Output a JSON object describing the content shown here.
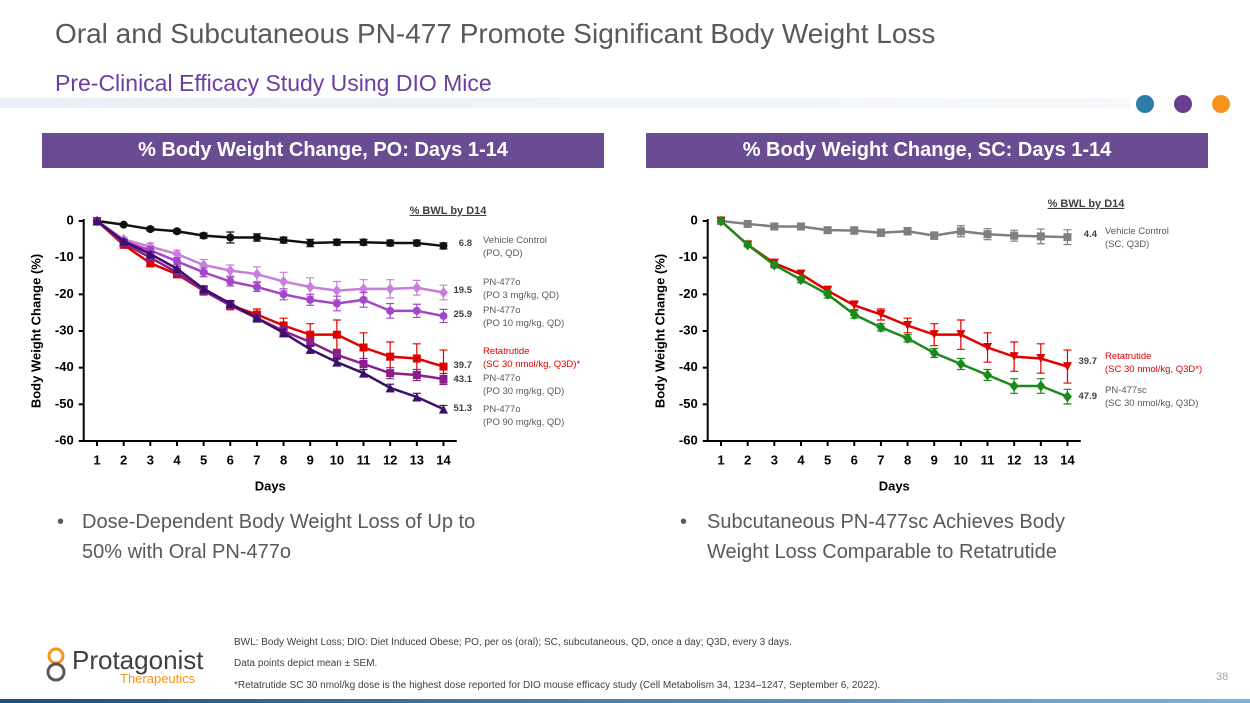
{
  "header": {
    "title": "Oral and Subcutaneous PN-477 Promote Significant Body Weight Loss",
    "subtitle": "Pre-Clinical Efficacy Study Using DIO Mice"
  },
  "chart_data": [
    {
      "type": "line",
      "title": "% Body Weight Change, PO: Days 1-14",
      "x_label": "Days",
      "y_label": "Body Weight Change (%)",
      "legend_title": "% BWL by D14",
      "x": [
        1,
        2,
        3,
        4,
        5,
        6,
        7,
        8,
        9,
        10,
        11,
        12,
        13,
        14
      ],
      "xlim": [
        0.5,
        14.5
      ],
      "xticks": [
        1,
        2,
        3,
        4,
        5,
        6,
        7,
        8,
        9,
        10,
        11,
        12,
        13,
        14
      ],
      "ylim": [
        -60,
        0
      ],
      "yticks": [
        0,
        -10,
        -20,
        -30,
        -40,
        -50,
        -60
      ],
      "series": [
        {
          "name": "Vehicle Control\n(PO, QD)",
          "bwl": "6.8",
          "color": "#111111",
          "marker": "circle",
          "values": [
            0,
            -1,
            -2.2,
            -2.8,
            -4,
            -4.5,
            -4.5,
            -5.2,
            -6,
            -5.8,
            -5.8,
            -6,
            -6,
            -6.8
          ],
          "errors": [
            0,
            0.3,
            0.5,
            0.5,
            0.7,
            1.5,
            1,
            0.8,
            1,
            0.8,
            0.8,
            0.8,
            0.8,
            0.8
          ]
        },
        {
          "name": "PN-477o\n(PO 3 mg/kg, QD)",
          "bwl": "19.5",
          "color": "#c77fdc",
          "marker": "diamond",
          "values": [
            0,
            -5,
            -7,
            -9,
            -12,
            -13.5,
            -14.5,
            -16.5,
            -18,
            -19,
            -18.5,
            -18.5,
            -18.2,
            -19.5
          ],
          "errors": [
            0,
            0.5,
            1,
            1,
            1.5,
            1.5,
            2,
            2.5,
            2.5,
            2.5,
            2.5,
            2.5,
            2,
            2
          ]
        },
        {
          "name": "PN-477o\n(PO 10 mg/kg, QD)",
          "bwl": "25.9",
          "color": "#a346c8",
          "marker": "circle",
          "values": [
            0,
            -5.5,
            -8,
            -11,
            -14,
            -16.5,
            -18,
            -20,
            -21.5,
            -22.5,
            -21.5,
            -24.5,
            -24.5,
            -25.9
          ],
          "errors": [
            0,
            0.5,
            1,
            1,
            1.2,
            1.2,
            1.2,
            1.5,
            1.5,
            2,
            2,
            2,
            1.8,
            1.8
          ]
        },
        {
          "name": "Retatrutide\n(SC 30 nmol/kg, Q3D)*",
          "bwl": "39.7",
          "color": "#e00000",
          "label_color": "#e00000",
          "marker": "square",
          "values": [
            0,
            -6.5,
            -11.5,
            -14.5,
            -19,
            -23,
            -25.5,
            -28.5,
            -31,
            -31,
            -34.5,
            -37,
            -37.5,
            -39.7
          ],
          "errors": [
            0,
            0.5,
            1,
            1,
            1.2,
            1.2,
            1.5,
            2,
            3,
            4,
            4,
            4,
            4,
            4.5
          ]
        },
        {
          "name": "PN-477o\n(PO 30 mg/kg, QD)",
          "bwl": "43.1",
          "color": "#8a1f8c",
          "marker": "square",
          "values": [
            0,
            -6,
            -10,
            -14,
            -19,
            -23,
            -26.5,
            -30,
            -33,
            -36.5,
            -39,
            -41.5,
            -42,
            -43.1
          ],
          "errors": [
            0,
            0.5,
            0.8,
            1,
            1,
            1,
            1,
            1.2,
            1.2,
            1.2,
            1.5,
            1.5,
            1.5,
            1.5
          ]
        },
        {
          "name": "PN-477o\n(PO 90 mg/kg, QD)",
          "bwl": "51.3",
          "color": "#3b0f6a",
          "marker": "triangle-up",
          "values": [
            0,
            -5.5,
            -9,
            -13,
            -18.5,
            -22.5,
            -26.5,
            -30.5,
            -35,
            -38.5,
            -41.5,
            -45.5,
            -48,
            -51.3
          ],
          "errors": [
            0,
            0.3,
            0.5,
            0.5,
            0.8,
            0.8,
            0.8,
            1,
            1,
            1,
            1,
            1,
            1,
            1
          ]
        }
      ]
    },
    {
      "type": "line",
      "title": "% Body Weight Change, SC: Days 1-14",
      "x_label": "Days",
      "y_label": "Body Weight Change (%)",
      "legend_title": "% BWL by D14",
      "x": [
        1,
        2,
        3,
        4,
        5,
        6,
        7,
        8,
        9,
        10,
        11,
        12,
        13,
        14
      ],
      "xlim": [
        0.5,
        14.5
      ],
      "xticks": [
        1,
        2,
        3,
        4,
        5,
        6,
        7,
        8,
        9,
        10,
        11,
        12,
        13,
        14
      ],
      "ylim": [
        -60,
        0
      ],
      "yticks": [
        0,
        -10,
        -20,
        -30,
        -40,
        -50,
        -60
      ],
      "series": [
        {
          "name": "Vehicle Control\n(SC, Q3D)",
          "bwl": "4.4",
          "color": "#7f7f7f",
          "marker": "square",
          "values": [
            0,
            -0.8,
            -1.5,
            -1.5,
            -2.5,
            -2.6,
            -3.2,
            -2.8,
            -4,
            -2.8,
            -3.6,
            -4,
            -4.2,
            -4.4
          ],
          "errors": [
            0,
            0.5,
            0.8,
            0.8,
            0.8,
            1,
            1,
            1,
            1,
            1.5,
            1.5,
            1.5,
            2,
            2
          ]
        },
        {
          "name": "Retatrutide\n(SC 30 nmol/kg, Q3D*)",
          "bwl": "39.7",
          "color": "#e00000",
          "label_color": "#e00000",
          "marker": "triangle-down",
          "values": [
            0,
            -6.5,
            -11.5,
            -14.5,
            -19,
            -23,
            -25.5,
            -28.5,
            -31,
            -31,
            -34.5,
            -37,
            -37.5,
            -39.7
          ],
          "errors": [
            0,
            0.5,
            1,
            1,
            1.2,
            1.2,
            1.5,
            2,
            3,
            4,
            4,
            4,
            4,
            4.5
          ]
        },
        {
          "name": "PN-477sc\n(SC 30 nmol/kg, Q3D)",
          "bwl": "47.9",
          "color": "#1a8a1a",
          "marker": "diamond",
          "values": [
            0,
            -6.5,
            -12,
            -16,
            -20,
            -25.5,
            -29,
            -32,
            -36,
            -39,
            -42,
            -45,
            -45,
            -47.9
          ],
          "errors": [
            0,
            0.5,
            0.8,
            0.8,
            1,
            1,
            1,
            1,
            1.2,
            1.5,
            1.5,
            2,
            2,
            2
          ]
        }
      ]
    }
  ],
  "bullets": [
    "Dose-Dependent Body Weight Loss of Up to\n50% with Oral PN-477o",
    "Subcutaneous PN-477sc Achieves Body\nWeight Loss Comparable to Retatrutide"
  ],
  "footnotes": [
    "BWL: Body Weight Loss; DIO: Diet Induced Obese; PO, per os (oral); SC, subcutaneous, QD, once a day; Q3D, every 3 days.",
    "Data points depict mean ± SEM.",
    "*Retatrutide SC 30 nmol/kg dose is the highest dose reported for DIO mouse efficacy study (Cell Metabolism 34, 1234–1247, September 6, 2022)."
  ],
  "logo": {
    "name": "Protagonist",
    "tagline": "Therapeutics"
  },
  "page_number": "38"
}
